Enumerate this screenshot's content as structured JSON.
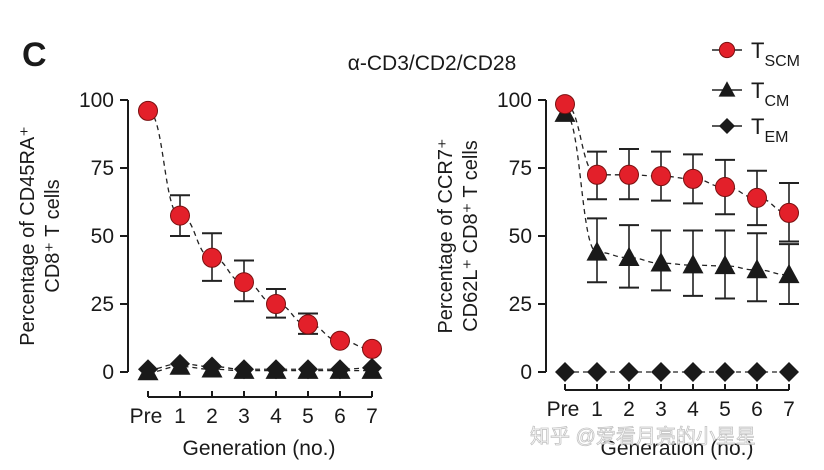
{
  "panel_label": "C",
  "figure_title": "α-CD3/CD2/CD28",
  "watermark": "知乎 @爱看月亮的小星星",
  "colors": {
    "tscm": "#e3202a",
    "tcm": "#1a1a1a",
    "tem": "#1a1a1a",
    "axis": "#1a1a1a"
  },
  "legend": [
    {
      "main": "T",
      "sub": "SCM",
      "marker": "circle"
    },
    {
      "main": "T",
      "sub": "CM",
      "marker": "triangle"
    },
    {
      "main": "T",
      "sub": "EM",
      "marker": "diamond"
    }
  ],
  "chart_data": [
    {
      "type": "scatter",
      "title": "",
      "xlabel": "Generation (no.)",
      "ylabel_line1": "Percentage of CD45RA⁺",
      "ylabel_line2": "CD8⁺ T cells",
      "categories": [
        "Pre",
        "1",
        "2",
        "3",
        "4",
        "5",
        "6",
        "7"
      ],
      "ylim": [
        0,
        100
      ],
      "yticks": [
        "0",
        "25",
        "50",
        "75",
        "100"
      ],
      "grid": false,
      "series": [
        {
          "name": "TSCM",
          "marker": "circle",
          "values": [
            96,
            57.5,
            42,
            33,
            25,
            17.5,
            11.5,
            8.5
          ],
          "err_low": [
            null,
            50,
            33.5,
            26,
            20,
            14,
            null,
            null
          ],
          "err_high": [
            null,
            65,
            51,
            41,
            30.5,
            21.5,
            null,
            null
          ]
        },
        {
          "name": "TCM",
          "marker": "triangle",
          "values": [
            0,
            2,
            1,
            0.5,
            0.5,
            0.5,
            0.5,
            0.5
          ],
          "err_low": [],
          "err_high": []
        },
        {
          "name": "TEM",
          "marker": "diamond",
          "values": [
            1,
            3,
            2,
            1,
            1,
            1,
            1,
            1.5
          ],
          "err_low": [],
          "err_high": []
        }
      ]
    },
    {
      "type": "scatter",
      "title": "",
      "xlabel": "Generation (no.)",
      "ylabel_line1": "Percentage of CCR7⁺",
      "ylabel_line2": "CD62L⁺ CD8⁺ T cells",
      "categories": [
        "Pre",
        "1",
        "2",
        "3",
        "4",
        "5",
        "6",
        "7"
      ],
      "ylim": [
        0,
        100
      ],
      "yticks": [
        "0",
        "25",
        "50",
        "75",
        "100"
      ],
      "grid": false,
      "series": [
        {
          "name": "TSCM",
          "marker": "circle",
          "values": [
            98.5,
            72.5,
            72.5,
            72,
            71,
            68,
            64,
            58.5
          ],
          "err_low": [
            null,
            63.5,
            63.5,
            63,
            62,
            58,
            54,
            48
          ],
          "err_high": [
            null,
            81,
            82,
            81,
            80,
            78,
            74,
            69.5
          ]
        },
        {
          "name": "TCM",
          "marker": "triangle",
          "values": [
            95,
            44,
            42,
            40,
            39.3,
            39,
            37.5,
            35.7
          ],
          "err_low": [
            null,
            33,
            31,
            30,
            28,
            27,
            26,
            25
          ],
          "err_high": [
            null,
            56.5,
            54,
            52,
            52,
            52,
            51,
            47
          ]
        },
        {
          "name": "TEM",
          "marker": "diamond",
          "values": [
            0,
            0,
            0,
            0,
            0,
            0,
            0,
            0
          ],
          "err_low": [],
          "err_high": []
        }
      ]
    }
  ]
}
